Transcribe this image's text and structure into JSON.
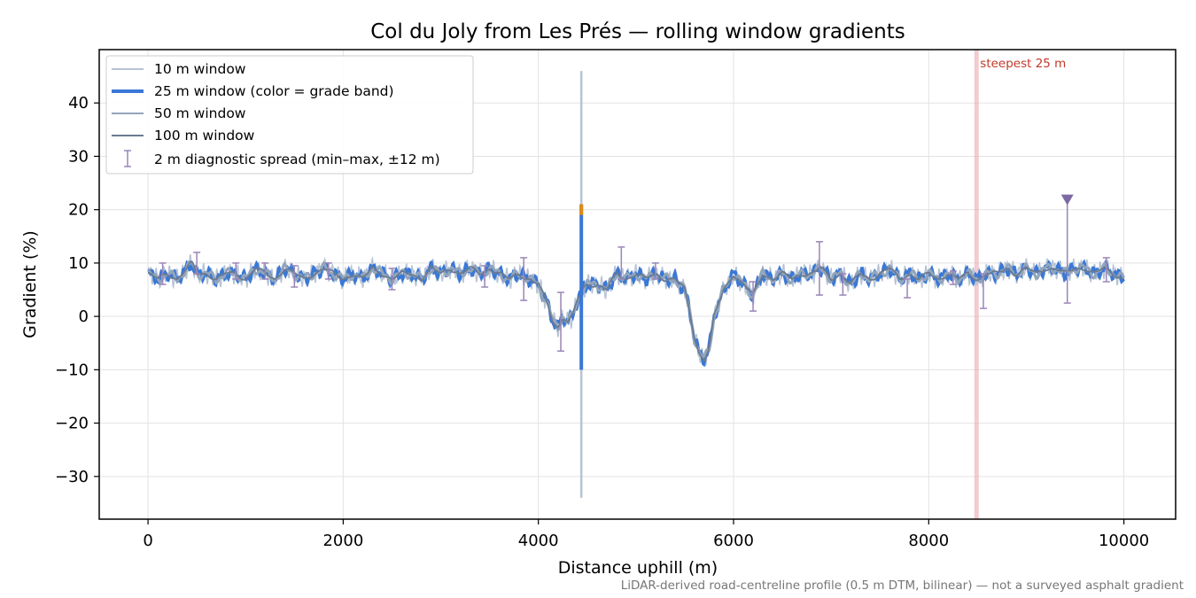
{
  "chart_data": {
    "type": "line",
    "title": "Col du Joly from Les Prés — rolling window gradients",
    "xlabel": "Distance uphill (m)",
    "ylabel": "Gradient (%)",
    "xlim": [
      -500,
      10530
    ],
    "ylim": [
      -38,
      50
    ],
    "xticks": [
      0,
      2000,
      4000,
      6000,
      8000,
      10000
    ],
    "yticks": [
      -30,
      -20,
      -10,
      0,
      10,
      20,
      30,
      40
    ],
    "xtick_labels": [
      "0",
      "2000",
      "4000",
      "6000",
      "8000",
      "10000"
    ],
    "ytick_labels": [
      "−30",
      "−20",
      "−10",
      "0",
      "10",
      "20",
      "30",
      "40"
    ],
    "grid": true,
    "legend_position": "upper-left",
    "legend": [
      "10 m window",
      "25 m window (color = grade band)",
      "50 m window",
      "100 m window",
      "2 m diagnostic spread (min–max, ±12 m)"
    ],
    "profile": {
      "x": [
        0,
        100,
        200,
        300,
        400,
        450,
        500,
        600,
        700,
        800,
        900,
        1000,
        1100,
        1200,
        1300,
        1400,
        1500,
        1600,
        1700,
        1800,
        1900,
        2000,
        2100,
        2200,
        2300,
        2400,
        2500,
        2600,
        2700,
        2800,
        2900,
        3000,
        3100,
        3200,
        3300,
        3400,
        3500,
        3600,
        3700,
        3800,
        3900,
        4000,
        4100,
        4150,
        4200,
        4250,
        4300,
        4350,
        4400,
        4450,
        4500,
        4600,
        4700,
        4800,
        4900,
        5000,
        5100,
        5200,
        5300,
        5400,
        5500,
        5550,
        5600,
        5650,
        5700,
        5750,
        5800,
        5900,
        6000,
        6100,
        6200,
        6300,
        6400,
        6500,
        6600,
        6700,
        6800,
        6900,
        7000,
        7100,
        7200,
        7300,
        7400,
        7500,
        7600,
        7700,
        7800,
        7900,
        8000,
        8100,
        8200,
        8300,
        8400,
        8500,
        8600,
        8700,
        8800,
        8900,
        9000,
        9100,
        9200,
        9300,
        9400,
        9500,
        9600,
        9700,
        9800,
        9900,
        10000
      ],
      "y": [
        8,
        7,
        8,
        7,
        9,
        10,
        8,
        8,
        7,
        8,
        8,
        7,
        9,
        8,
        7,
        9,
        8,
        7,
        8,
        9,
        8,
        7,
        8,
        7,
        9,
        8,
        7,
        8,
        8,
        7,
        9,
        8,
        9,
        8,
        9,
        8,
        9,
        8,
        7,
        8,
        7,
        6,
        2,
        -1,
        -2,
        0,
        -1,
        0,
        3,
        5,
        6,
        6,
        5,
        8,
        7,
        8,
        7,
        8,
        7,
        7,
        5,
        1,
        -4,
        -7,
        -8,
        -6,
        0,
        5,
        8,
        6,
        4,
        8,
        7,
        8,
        7,
        8,
        8,
        9,
        7,
        8,
        6,
        8,
        7,
        8,
        9,
        7,
        8,
        7,
        8,
        7,
        8,
        7,
        8,
        7,
        8,
        8,
        9,
        8,
        9,
        8,
        9,
        9,
        8,
        9,
        9,
        8,
        9,
        8,
        7
      ]
    },
    "spikes": [
      {
        "x": 4440,
        "y_min": -34,
        "y_max": 46,
        "window": "10 m window"
      },
      {
        "x": 4440,
        "y_min": -10,
        "y_max": 21,
        "window": "25 m window (color = grade band)"
      }
    ],
    "errorbars": [
      {
        "x": 150,
        "min": 6,
        "max": 10
      },
      {
        "x": 500,
        "min": 8,
        "max": 12
      },
      {
        "x": 900,
        "min": 7,
        "max": 10
      },
      {
        "x": 1200,
        "min": 7,
        "max": 10
      },
      {
        "x": 1500,
        "min": 5.5,
        "max": 9.5
      },
      {
        "x": 1850,
        "min": 7,
        "max": 10
      },
      {
        "x": 2500,
        "min": 5,
        "max": 9
      },
      {
        "x": 3450,
        "min": 5.5,
        "max": 9.5
      },
      {
        "x": 3850,
        "min": 3,
        "max": 11
      },
      {
        "x": 4230,
        "min": -6.5,
        "max": 4.5
      },
      {
        "x": 4850,
        "min": 7,
        "max": 13
      },
      {
        "x": 5200,
        "min": 7,
        "max": 10
      },
      {
        "x": 6200,
        "min": 1,
        "max": 6.5
      },
      {
        "x": 6880,
        "min": 4,
        "max": 14
      },
      {
        "x": 7120,
        "min": 4,
        "max": 8
      },
      {
        "x": 7780,
        "min": 3.5,
        "max": 7
      },
      {
        "x": 8250,
        "min": 6,
        "max": 8.5
      },
      {
        "x": 8560,
        "min": 1.5,
        "max": 8
      },
      {
        "x": 9420,
        "min": 2.5,
        "max": 22
      },
      {
        "x": 9820,
        "min": 6.5,
        "max": 11
      }
    ],
    "max_marker": {
      "x": 9420,
      "y": 22
    },
    "steepest_line": {
      "x": 8490,
      "label": "steepest 25 m"
    },
    "colors": {
      "w10": "#b7c3d4",
      "w25": "#3a78d6",
      "w25_peak": "#e08a12",
      "w50": "#93a5ba",
      "w100": "#6b7a8f",
      "errorbar": "#9a85b8",
      "marker": "#7d6aa3",
      "steepest": "#e8a3a8",
      "grid": "#e3e3e3"
    }
  },
  "footnote": "LiDAR-derived road-centreline profile (0.5 m DTM, bilinear) — not a surveyed asphalt gradient"
}
